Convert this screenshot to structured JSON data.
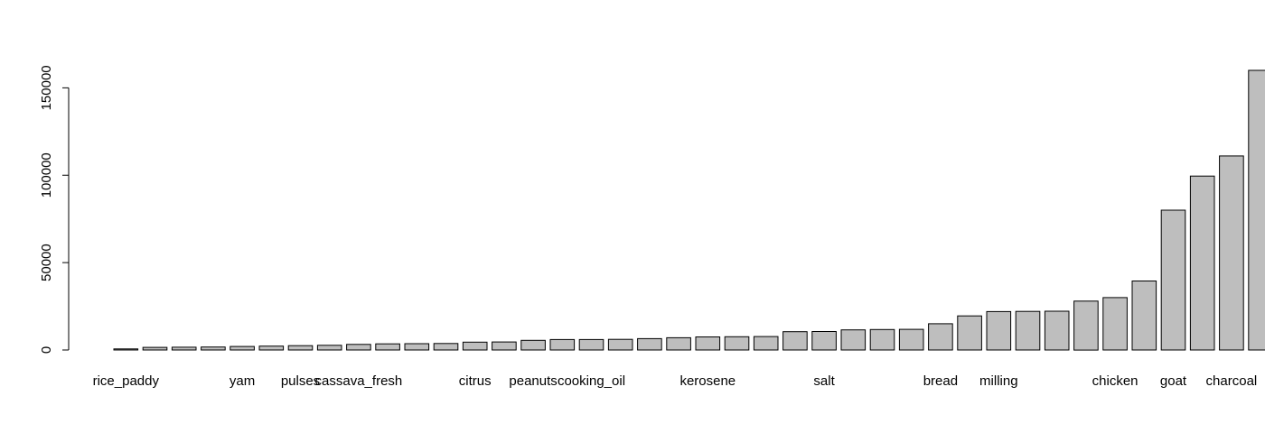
{
  "chart_data": {
    "type": "bar",
    "title": "",
    "xlabel": "",
    "ylabel": "",
    "ylim": [
      0,
      160000
    ],
    "yticks": [
      0,
      50000,
      100000,
      150000
    ],
    "ytick_labels": [
      "0",
      "50000",
      "100000",
      "150000"
    ],
    "grid": false,
    "bar_color": "#bebebe",
    "bar_edge_color": "#000000",
    "categories": [
      "rice_paddy",
      "",
      "",
      "",
      "yam",
      "",
      "pulses",
      "",
      "cassava_fresh",
      "",
      "",
      "",
      "citrus",
      "",
      "peanuts",
      "",
      "cooking_oil",
      "",
      "",
      "",
      "kerosene",
      "",
      "",
      "",
      "salt",
      "",
      "",
      "",
      "bread",
      "",
      "milling",
      "",
      "",
      "",
      "chicken",
      "",
      "goat",
      "",
      "charcoal",
      ""
    ],
    "values": [
      600,
      1500,
      1600,
      1700,
      2000,
      2200,
      2500,
      2700,
      3200,
      3500,
      3600,
      3700,
      4500,
      4600,
      5500,
      6000,
      6000,
      6100,
      6500,
      7000,
      7500,
      7600,
      7700,
      10500,
      10600,
      11500,
      11700,
      11800,
      15000,
      19500,
      22000,
      22100,
      22200,
      28000,
      30000,
      39500,
      80000,
      99500,
      111000,
      160000
    ]
  }
}
